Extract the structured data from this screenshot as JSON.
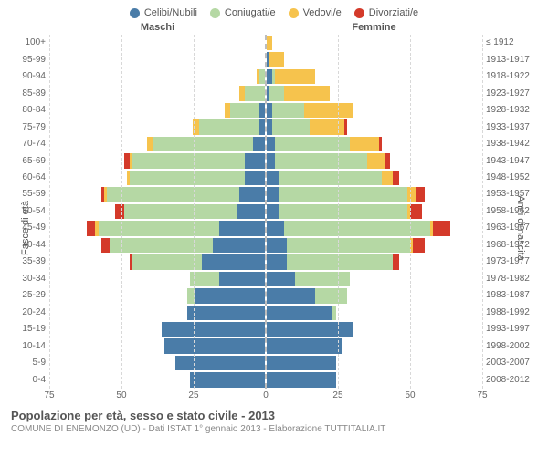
{
  "chart": {
    "type": "population-pyramid",
    "background_color": "#ffffff",
    "grid_color": "#d8d8d8",
    "center_line_color": "#bdbdbd",
    "text_color": "#666666",
    "axis_max": 75,
    "x_ticks": [
      75,
      50,
      25,
      0,
      25,
      50,
      75
    ],
    "male_header": "Maschi",
    "female_header": "Femmine",
    "y_left_title": "Fasce di età",
    "y_right_title": "Anni di nascita",
    "title": "Popolazione per età, sesso e stato civile - 2013",
    "subtitle": "COMUNE DI ENEMONZO (UD) - Dati ISTAT 1° gennaio 2013 - Elaborazione TUTTITALIA.IT",
    "legend": [
      {
        "label": "Celibi/Nubili",
        "color": "#4a7ca8"
      },
      {
        "label": "Coniugati/e",
        "color": "#b5d8a4"
      },
      {
        "label": "Vedovi/e",
        "color": "#f6c34d"
      },
      {
        "label": "Divorziati/e",
        "color": "#d43a2a"
      }
    ],
    "age_labels": [
      "100+",
      "95-99",
      "90-94",
      "85-89",
      "80-84",
      "75-79",
      "70-74",
      "65-69",
      "60-64",
      "55-59",
      "50-54",
      "45-49",
      "40-44",
      "35-39",
      "30-34",
      "25-29",
      "20-24",
      "15-19",
      "10-14",
      "5-9",
      "0-4"
    ],
    "birth_labels": [
      "≤ 1912",
      "1913-1917",
      "1918-1922",
      "1923-1927",
      "1928-1932",
      "1933-1937",
      "1938-1942",
      "1943-1947",
      "1948-1952",
      "1953-1957",
      "1958-1962",
      "1963-1967",
      "1968-1972",
      "1973-1977",
      "1978-1982",
      "1983-1987",
      "1988-1992",
      "1993-1997",
      "1998-2002",
      "2003-2007",
      "2008-2012"
    ],
    "rows": [
      {
        "m": {
          "c": 0,
          "co": 0,
          "v": 0,
          "d": 0
        },
        "f": {
          "c": 0,
          "co": 0,
          "v": 2,
          "d": 0
        }
      },
      {
        "m": {
          "c": 0,
          "co": 0,
          "v": 0,
          "d": 0
        },
        "f": {
          "c": 1,
          "co": 0,
          "v": 5,
          "d": 0
        }
      },
      {
        "m": {
          "c": 0,
          "co": 2,
          "v": 1,
          "d": 0
        },
        "f": {
          "c": 2,
          "co": 1,
          "v": 14,
          "d": 0
        }
      },
      {
        "m": {
          "c": 0,
          "co": 7,
          "v": 2,
          "d": 0
        },
        "f": {
          "c": 1,
          "co": 5,
          "v": 16,
          "d": 0
        }
      },
      {
        "m": {
          "c": 2,
          "co": 10,
          "v": 2,
          "d": 0
        },
        "f": {
          "c": 2,
          "co": 11,
          "v": 17,
          "d": 0
        }
      },
      {
        "m": {
          "c": 2,
          "co": 21,
          "v": 2,
          "d": 0
        },
        "f": {
          "c": 2,
          "co": 13,
          "v": 12,
          "d": 1
        }
      },
      {
        "m": {
          "c": 4,
          "co": 35,
          "v": 2,
          "d": 0
        },
        "f": {
          "c": 3,
          "co": 26,
          "v": 10,
          "d": 1
        }
      },
      {
        "m": {
          "c": 7,
          "co": 39,
          "v": 1,
          "d": 2
        },
        "f": {
          "c": 3,
          "co": 32,
          "v": 6,
          "d": 2
        }
      },
      {
        "m": {
          "c": 7,
          "co": 40,
          "v": 1,
          "d": 0
        },
        "f": {
          "c": 4,
          "co": 36,
          "v": 4,
          "d": 2
        }
      },
      {
        "m": {
          "c": 9,
          "co": 46,
          "v": 1,
          "d": 1
        },
        "f": {
          "c": 4,
          "co": 45,
          "v": 3,
          "d": 3
        }
      },
      {
        "m": {
          "c": 10,
          "co": 39,
          "v": 0,
          "d": 3
        },
        "f": {
          "c": 4,
          "co": 45,
          "v": 1,
          "d": 4
        }
      },
      {
        "m": {
          "c": 16,
          "co": 42,
          "v": 1,
          "d": 3
        },
        "f": {
          "c": 6,
          "co": 51,
          "v": 1,
          "d": 6
        }
      },
      {
        "m": {
          "c": 18,
          "co": 36,
          "v": 0,
          "d": 3
        },
        "f": {
          "c": 7,
          "co": 43,
          "v": 1,
          "d": 4
        }
      },
      {
        "m": {
          "c": 22,
          "co": 24,
          "v": 0,
          "d": 1
        },
        "f": {
          "c": 7,
          "co": 37,
          "v": 0,
          "d": 2
        }
      },
      {
        "m": {
          "c": 16,
          "co": 10,
          "v": 0,
          "d": 0
        },
        "f": {
          "c": 10,
          "co": 19,
          "v": 0,
          "d": 0
        }
      },
      {
        "m": {
          "c": 24,
          "co": 3,
          "v": 0,
          "d": 0
        },
        "f": {
          "c": 17,
          "co": 11,
          "v": 0,
          "d": 0
        }
      },
      {
        "m": {
          "c": 27,
          "co": 0,
          "v": 0,
          "d": 0
        },
        "f": {
          "c": 23,
          "co": 1,
          "v": 0,
          "d": 0
        }
      },
      {
        "m": {
          "c": 36,
          "co": 0,
          "v": 0,
          "d": 0
        },
        "f": {
          "c": 30,
          "co": 0,
          "v": 0,
          "d": 0
        }
      },
      {
        "m": {
          "c": 35,
          "co": 0,
          "v": 0,
          "d": 0
        },
        "f": {
          "c": 26,
          "co": 0,
          "v": 0,
          "d": 0
        }
      },
      {
        "m": {
          "c": 31,
          "co": 0,
          "v": 0,
          "d": 0
        },
        "f": {
          "c": 24,
          "co": 0,
          "v": 0,
          "d": 0
        }
      },
      {
        "m": {
          "c": 26,
          "co": 0,
          "v": 0,
          "d": 0
        },
        "f": {
          "c": 24,
          "co": 0,
          "v": 0,
          "d": 0
        }
      }
    ]
  }
}
